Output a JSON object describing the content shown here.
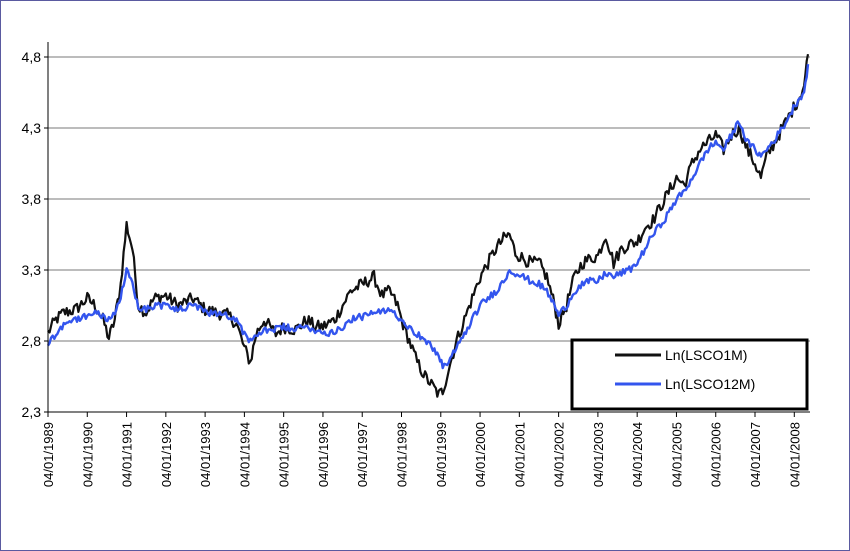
{
  "chart_data": {
    "type": "line",
    "title": "",
    "xlabel": "",
    "ylabel": "",
    "ylim": [
      2.3,
      4.8
    ],
    "xlim": [
      1989.0,
      2008.4
    ],
    "grid": true,
    "legend_position": "bottom-right",
    "y_ticks": [
      "2,3",
      "2,8",
      "3,3",
      "3,8",
      "4,3",
      "4,8"
    ],
    "y_tick_values": [
      2.3,
      2.8,
      3.3,
      3.8,
      4.3,
      4.8
    ],
    "x_ticks": [
      "04/01/1989",
      "04/01/1990",
      "04/01/1991",
      "04/01/1992",
      "04/01/1993",
      "04/01/1994",
      "04/01/1995",
      "04/01/1996",
      "04/01/1997",
      "04/01/1998",
      "04/01/1999",
      "04/01/2000",
      "04/01/2001",
      "04/01/2002",
      "04/01/2003",
      "04/01/2004",
      "04/01/2005",
      "04/01/2006",
      "04/01/2007",
      "04/01/2008"
    ],
    "series": [
      {
        "name": "Ln(LSCO1M)",
        "color": "#111111",
        "x": [
          1989.0,
          1989.2,
          1989.4,
          1989.7,
          1990.0,
          1990.2,
          1990.4,
          1990.55,
          1990.7,
          1990.85,
          1991.0,
          1991.15,
          1991.3,
          1991.5,
          1991.7,
          1992.0,
          1992.3,
          1992.7,
          1993.0,
          1993.3,
          1993.6,
          1993.8,
          1994.0,
          1994.15,
          1994.3,
          1994.5,
          1994.8,
          1995.0,
          1995.3,
          1995.6,
          1995.8,
          1996.0,
          1996.3,
          1996.5,
          1996.7,
          1997.0,
          1997.3,
          1997.5,
          1997.7,
          1997.9,
          1998.0,
          1998.2,
          1998.4,
          1998.6,
          1998.8,
          1998.95,
          1999.05,
          1999.2,
          1999.4,
          1999.6,
          1999.8,
          2000.0,
          2000.2,
          2000.4,
          2000.6,
          2000.75,
          2000.9,
          2001.1,
          2001.3,
          2001.5,
          2001.7,
          2001.9,
          2002.0,
          2002.2,
          2002.4,
          2002.6,
          2002.8,
          2003.0,
          2003.2,
          2003.4,
          2003.6,
          2003.8,
          2004.0,
          2004.2,
          2004.4,
          2004.6,
          2004.8,
          2005.0,
          2005.2,
          2005.4,
          2005.6,
          2005.8,
          2006.0,
          2006.2,
          2006.4,
          2006.6,
          2006.8,
          2007.0,
          2007.15,
          2007.3,
          2007.5,
          2007.7,
          2007.9,
          2008.1,
          2008.25,
          2008.35
        ],
        "values": [
          2.86,
          2.95,
          3.0,
          3.02,
          3.1,
          3.05,
          2.95,
          2.82,
          2.95,
          3.2,
          3.62,
          3.45,
          3.05,
          3.0,
          3.1,
          3.12,
          3.05,
          3.1,
          3.02,
          3.0,
          2.98,
          2.92,
          2.75,
          2.65,
          2.85,
          2.95,
          2.85,
          2.9,
          2.88,
          2.95,
          2.9,
          2.9,
          2.95,
          3.05,
          3.15,
          3.2,
          3.25,
          3.12,
          3.15,
          3.05,
          2.95,
          2.8,
          2.65,
          2.55,
          2.48,
          2.42,
          2.45,
          2.6,
          2.8,
          2.95,
          3.1,
          3.25,
          3.35,
          3.45,
          3.52,
          3.55,
          3.42,
          3.38,
          3.35,
          3.35,
          3.25,
          3.05,
          2.92,
          3.05,
          3.25,
          3.35,
          3.38,
          3.4,
          3.55,
          3.35,
          3.45,
          3.48,
          3.5,
          3.6,
          3.65,
          3.75,
          3.85,
          3.95,
          3.9,
          4.05,
          4.15,
          4.2,
          4.25,
          4.15,
          4.25,
          4.3,
          4.15,
          4.05,
          3.95,
          4.1,
          4.2,
          4.3,
          4.4,
          4.5,
          4.6,
          4.82
        ]
      },
      {
        "name": "Ln(LSCO12M)",
        "color": "#3355ee",
        "x": [
          1989.0,
          1989.2,
          1989.4,
          1989.7,
          1990.0,
          1990.2,
          1990.4,
          1990.55,
          1990.7,
          1990.85,
          1991.0,
          1991.15,
          1991.3,
          1991.5,
          1991.7,
          1992.0,
          1992.3,
          1992.7,
          1993.0,
          1993.3,
          1993.6,
          1993.8,
          1994.0,
          1994.15,
          1994.3,
          1994.5,
          1994.8,
          1995.0,
          1995.3,
          1995.6,
          1995.8,
          1996.0,
          1996.3,
          1996.5,
          1996.7,
          1997.0,
          1997.3,
          1997.5,
          1997.7,
          1997.9,
          1998.0,
          1998.2,
          1998.4,
          1998.6,
          1998.8,
          1998.95,
          1999.05,
          1999.2,
          1999.4,
          1999.6,
          1999.8,
          2000.0,
          2000.2,
          2000.4,
          2000.6,
          2000.75,
          2000.9,
          2001.1,
          2001.3,
          2001.5,
          2001.7,
          2001.9,
          2002.0,
          2002.2,
          2002.4,
          2002.6,
          2002.8,
          2003.0,
          2003.2,
          2003.4,
          2003.6,
          2003.8,
          2004.0,
          2004.2,
          2004.4,
          2004.6,
          2004.8,
          2005.0,
          2005.2,
          2005.4,
          2005.6,
          2005.8,
          2006.0,
          2006.2,
          2006.4,
          2006.6,
          2006.8,
          2007.0,
          2007.15,
          2007.3,
          2007.5,
          2007.7,
          2007.9,
          2008.1,
          2008.25,
          2008.35
        ],
        "values": [
          2.78,
          2.85,
          2.92,
          2.95,
          2.98,
          3.0,
          2.98,
          2.95,
          3.0,
          3.1,
          3.3,
          3.2,
          3.05,
          3.02,
          3.05,
          3.05,
          3.02,
          3.05,
          3.0,
          3.0,
          2.98,
          2.95,
          2.85,
          2.8,
          2.82,
          2.88,
          2.88,
          2.9,
          2.88,
          2.9,
          2.88,
          2.85,
          2.87,
          2.9,
          2.95,
          2.97,
          3.0,
          3.0,
          3.02,
          2.98,
          2.95,
          2.9,
          2.85,
          2.8,
          2.75,
          2.7,
          2.62,
          2.65,
          2.75,
          2.85,
          2.95,
          3.05,
          3.1,
          3.15,
          3.22,
          3.3,
          3.28,
          3.25,
          3.22,
          3.2,
          3.15,
          3.05,
          2.98,
          3.05,
          3.15,
          3.2,
          3.22,
          3.22,
          3.28,
          3.25,
          3.28,
          3.3,
          3.35,
          3.45,
          3.55,
          3.62,
          3.7,
          3.8,
          3.85,
          3.95,
          4.05,
          4.15,
          4.2,
          4.15,
          4.25,
          4.35,
          4.2,
          4.15,
          4.1,
          4.15,
          4.22,
          4.3,
          4.4,
          4.5,
          4.55,
          4.75
        ]
      }
    ]
  }
}
